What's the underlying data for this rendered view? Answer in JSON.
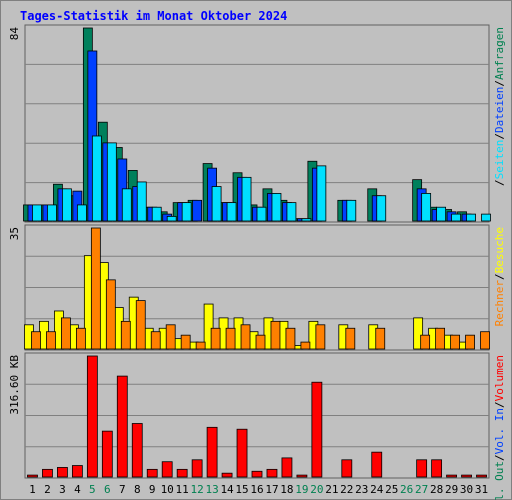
{
  "chart_data": {
    "type": "bar",
    "title": "Tages-Statistik im Monat Oktober 2024",
    "x": [
      "1",
      "2",
      "3",
      "4",
      "5",
      "6",
      "7",
      "8",
      "9",
      "10",
      "11",
      "12",
      "13",
      "14",
      "15",
      "16",
      "17",
      "18",
      "19",
      "20",
      "21",
      "22",
      "23",
      "24",
      "25",
      "26",
      "27",
      "28",
      "29",
      "30",
      "31"
    ],
    "weekend_days": [
      "5",
      "6",
      "12",
      "13",
      "19",
      "20",
      "26",
      "27"
    ],
    "panels": [
      {
        "name": "hits",
        "max_label": "84",
        "ylim": [
          0,
          84
        ],
        "side_labels": [
          {
            "text": "Anfragen",
            "color": "#008050"
          },
          {
            "text": "/",
            "color": "#000000"
          },
          {
            "text": "Dateien",
            "color": "#0040ff"
          },
          {
            "text": "/",
            "color": "#000000"
          },
          {
            "text": "Seiten",
            "color": "#00e0ff"
          },
          {
            "text": "/",
            "color": "#000000"
          }
        ],
        "series": [
          {
            "name": "Anfragen",
            "color": "#00805c",
            "values": [
              7,
              7,
              16,
              11,
              84,
              43,
              32,
              22,
              6,
              4,
              8,
              9,
              25,
              8,
              21,
              7,
              14,
              9,
              1,
              26,
              0,
              9,
              0,
              14,
              0,
              0,
              18,
              6,
              5,
              4,
              0
            ]
          },
          {
            "name": "Dateien",
            "color": "#0040ff",
            "values": [
              7,
              7,
              14,
              13,
              74,
              34,
              27,
              15,
              6,
              3,
              8,
              9,
              23,
              8,
              19,
              6,
              12,
              8,
              1,
              23,
              0,
              9,
              0,
              11,
              0,
              0,
              14,
              5,
              4,
              3,
              0
            ]
          },
          {
            "name": "Seiten",
            "color": "#00e0ff",
            "values": [
              7,
              7,
              14,
              7,
              37,
              34,
              14,
              17,
              6,
              2,
              8,
              0,
              15,
              8,
              19,
              6,
              12,
              8,
              1,
              24,
              0,
              9,
              0,
              11,
              0,
              0,
              12,
              6,
              3,
              3,
              3
            ]
          }
        ]
      },
      {
        "name": "visits",
        "max_label": "35",
        "ylim": [
          0,
          35
        ],
        "side_labels": [
          {
            "text": "Besuche",
            "color": "#ffff00"
          },
          {
            "text": "/",
            "color": "#000000"
          },
          {
            "text": "Rechner",
            "color": "#ff8000"
          }
        ],
        "series": [
          {
            "name": "Besuche",
            "color": "#ffff00",
            "values": [
              7,
              8,
              11,
              7,
              27,
              25,
              12,
              15,
              6,
              6,
              3,
              2,
              13,
              9,
              9,
              5,
              9,
              8,
              1,
              8,
              0,
              7,
              0,
              7,
              0,
              0,
              9,
              6,
              4,
              2,
              0
            ]
          },
          {
            "name": "Rechner",
            "color": "#ff8000",
            "values": [
              5,
              5,
              9,
              6,
              35,
              20,
              8,
              14,
              5,
              7,
              4,
              2,
              6,
              6,
              7,
              4,
              8,
              6,
              2,
              7,
              0,
              6,
              0,
              6,
              0,
              0,
              4,
              6,
              4,
              4,
              5
            ]
          }
        ]
      },
      {
        "name": "volume",
        "max_label": "316.60 KB",
        "ylim": [
          0,
          316.6
        ],
        "side_labels": [
          {
            "text": "Volumen",
            "color": "#ff0000"
          },
          {
            "text": "/",
            "color": "#000000"
          },
          {
            "text": "Vol. In",
            "color": "#0040ff"
          },
          {
            "text": "/",
            "color": "#000000"
          },
          {
            "text": "Vol. Out",
            "color": "#008050"
          }
        ],
        "series": [
          {
            "name": "Volumen",
            "color": "#ff0000",
            "values": [
              5,
              20,
              25,
              30,
              316.6,
              120,
              264,
              140,
              20,
              40,
              20,
              45,
              130,
              10,
              125,
              15,
              20,
              50,
              5,
              248,
              0,
              45,
              0,
              65,
              0,
              0,
              45,
              45,
              5,
              5,
              5
            ]
          }
        ]
      }
    ]
  }
}
